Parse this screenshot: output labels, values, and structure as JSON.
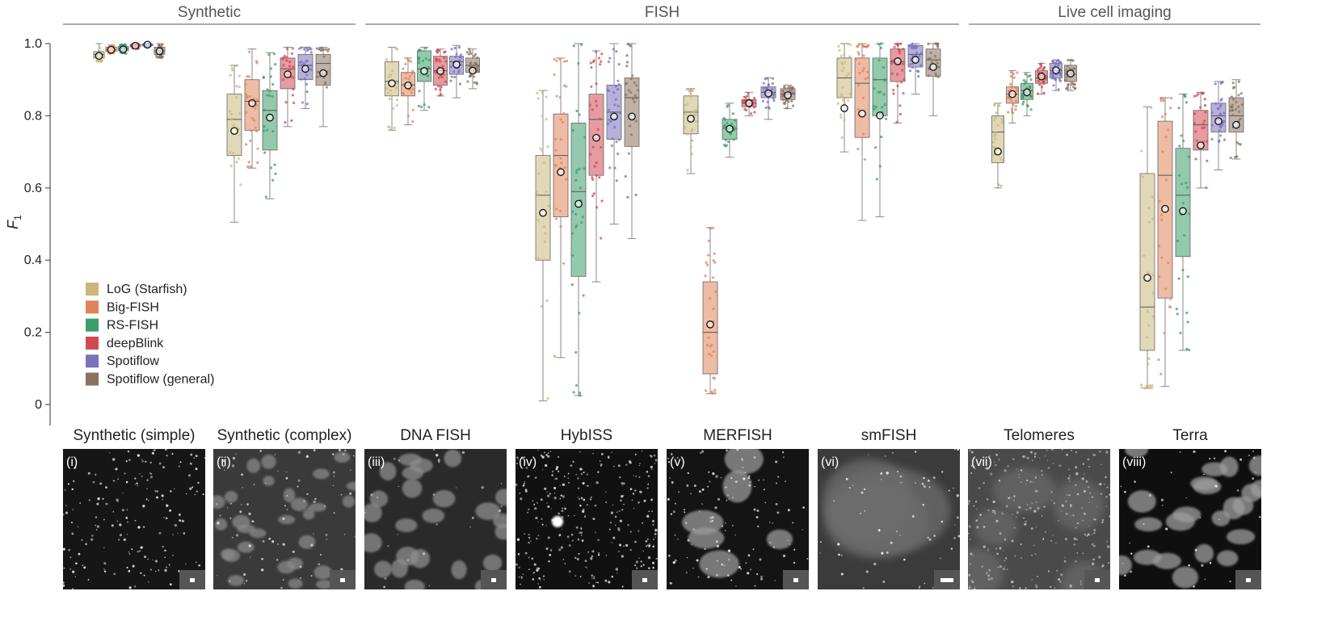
{
  "chart_data": {
    "type": "box",
    "ylabel": "F1",
    "ylim": [
      0,
      1.0
    ],
    "yticks": [
      0,
      0.2,
      0.4,
      0.6,
      0.8,
      1.0
    ],
    "ytick_labels": [
      "0",
      "0.2",
      "0.4",
      "0.6",
      "0.8",
      "1.0"
    ],
    "grid": false,
    "legend_position": "bottom-left",
    "groups": [
      {
        "label": "Synthetic",
        "datasets": [
          "Synthetic (simple)",
          "Synthetic (complex)"
        ]
      },
      {
        "label": "FISH",
        "datasets": [
          "DNA FISH",
          "HybISS",
          "MERFISH",
          "smFISH"
        ]
      },
      {
        "label": "Live cell imaging",
        "datasets": [
          "Telomeres",
          "Terra"
        ]
      }
    ],
    "methods": [
      {
        "name": "LoG (Starfish)",
        "color": "#c9b87c"
      },
      {
        "name": "Big-FISH",
        "color": "#e0845a"
      },
      {
        "name": "RS-FISH",
        "color": "#3c9e6a"
      },
      {
        "name": "deepBlink",
        "color": "#cf4a52"
      },
      {
        "name": "Spotiflow",
        "color": "#7a72bd"
      },
      {
        "name": "Spotiflow (general)",
        "color": "#8b7160"
      }
    ],
    "datasets": [
      {
        "name": "Synthetic (simple)",
        "panel": "(i)",
        "boxes": [
          {
            "q1": 0.96,
            "median": 0.97,
            "q3": 0.978,
            "wlo": 0.95,
            "whi": 1.0,
            "mean": 0.966
          },
          {
            "q1": 0.978,
            "median": 0.984,
            "q3": 0.99,
            "wlo": 0.972,
            "whi": 0.996,
            "mean": 0.983
          },
          {
            "q1": 0.98,
            "median": 0.986,
            "q3": 0.992,
            "wlo": 0.972,
            "whi": 0.998,
            "mean": 0.984
          },
          {
            "q1": 0.991,
            "median": 0.995,
            "q3": 0.998,
            "wlo": 0.986,
            "whi": 1.0,
            "mean": 0.994
          },
          {
            "q1": 0.994,
            "median": 0.997,
            "q3": 0.999,
            "wlo": 0.99,
            "whi": 1.0,
            "mean": 0.997
          },
          {
            "q1": 0.97,
            "median": 0.98,
            "q3": 0.99,
            "wlo": 0.96,
            "whi": 1.0,
            "mean": 0.979
          }
        ]
      },
      {
        "name": "Synthetic (complex)",
        "panel": "(ii)",
        "boxes": [
          {
            "q1": 0.69,
            "median": 0.79,
            "q3": 0.86,
            "wlo": 0.505,
            "whi": 0.94,
            "mean": 0.758
          },
          {
            "q1": 0.76,
            "median": 0.84,
            "q3": 0.9,
            "wlo": 0.655,
            "whi": 0.985,
            "mean": 0.835
          },
          {
            "q1": 0.705,
            "median": 0.815,
            "q3": 0.87,
            "wlo": 0.57,
            "whi": 0.975,
            "mean": 0.795
          },
          {
            "q1": 0.875,
            "median": 0.93,
            "q3": 0.96,
            "wlo": 0.77,
            "whi": 0.99,
            "mean": 0.915
          },
          {
            "q1": 0.9,
            "median": 0.94,
            "q3": 0.97,
            "wlo": 0.82,
            "whi": 0.99,
            "mean": 0.93
          },
          {
            "q1": 0.885,
            "median": 0.945,
            "q3": 0.97,
            "wlo": 0.77,
            "whi": 0.99,
            "mean": 0.918
          }
        ]
      },
      {
        "name": "DNA FISH",
        "panel": "(iii)",
        "boxes": [
          {
            "q1": 0.855,
            "median": 0.895,
            "q3": 0.95,
            "wlo": 0.76,
            "whi": 0.99,
            "mean": 0.89
          },
          {
            "q1": 0.855,
            "median": 0.885,
            "q3": 0.92,
            "wlo": 0.775,
            "whi": 0.96,
            "mean": 0.884
          },
          {
            "q1": 0.895,
            "median": 0.93,
            "q3": 0.98,
            "wlo": 0.815,
            "whi": 0.99,
            "mean": 0.924
          },
          {
            "q1": 0.885,
            "median": 0.925,
            "q3": 0.965,
            "wlo": 0.855,
            "whi": 0.985,
            "mean": 0.924
          },
          {
            "q1": 0.915,
            "median": 0.95,
            "q3": 0.965,
            "wlo": 0.85,
            "whi": 0.995,
            "mean": 0.942
          },
          {
            "q1": 0.92,
            "median": 0.94,
            "q3": 0.96,
            "wlo": 0.875,
            "whi": 0.985,
            "mean": 0.925
          }
        ]
      },
      {
        "name": "HybISS",
        "panel": "(iv)",
        "boxes": [
          {
            "q1": 0.4,
            "median": 0.58,
            "q3": 0.69,
            "wlo": 0.01,
            "whi": 0.87,
            "mean": 0.531
          },
          {
            "q1": 0.52,
            "median": 0.69,
            "q3": 0.805,
            "wlo": 0.13,
            "whi": 0.96,
            "mean": 0.644
          },
          {
            "q1": 0.355,
            "median": 0.59,
            "q3": 0.78,
            "wlo": 0.025,
            "whi": 1.0,
            "mean": 0.556
          },
          {
            "q1": 0.635,
            "median": 0.79,
            "q3": 0.86,
            "wlo": 0.34,
            "whi": 0.98,
            "mean": 0.739
          },
          {
            "q1": 0.735,
            "median": 0.81,
            "q3": 0.885,
            "wlo": 0.5,
            "whi": 1.0,
            "mean": 0.798
          },
          {
            "q1": 0.715,
            "median": 0.85,
            "q3": 0.905,
            "wlo": 0.46,
            "whi": 1.0,
            "mean": 0.798
          }
        ]
      },
      {
        "name": "MERFISH",
        "panel": "(v)",
        "boxes": [
          {
            "q1": 0.75,
            "median": 0.81,
            "q3": 0.855,
            "wlo": 0.64,
            "whi": 0.875,
            "mean": 0.792
          },
          {
            "q1": 0.085,
            "median": 0.2,
            "q3": 0.34,
            "wlo": 0.03,
            "whi": 0.49,
            "mean": 0.222
          },
          {
            "q1": 0.735,
            "median": 0.765,
            "q3": 0.79,
            "wlo": 0.685,
            "whi": 0.835,
            "mean": 0.764
          },
          {
            "q1": 0.825,
            "median": 0.835,
            "q3": 0.845,
            "wlo": 0.8,
            "whi": 0.865,
            "mean": 0.835
          },
          {
            "q1": 0.85,
            "median": 0.865,
            "q3": 0.88,
            "wlo": 0.79,
            "whi": 0.905,
            "mean": 0.862
          },
          {
            "q1": 0.845,
            "median": 0.86,
            "q3": 0.875,
            "wlo": 0.82,
            "whi": 0.885,
            "mean": 0.857
          }
        ]
      },
      {
        "name": "smFISH",
        "panel": "(vi)",
        "boxes": [
          {
            "q1": 0.85,
            "median": 0.905,
            "q3": 0.96,
            "wlo": 0.7,
            "whi": 1.0,
            "mean": 0.821
          },
          {
            "q1": 0.74,
            "median": 0.89,
            "q3": 0.96,
            "wlo": 0.51,
            "whi": 1.0,
            "mean": 0.806
          },
          {
            "q1": 0.8,
            "median": 0.9,
            "q3": 0.96,
            "wlo": 0.52,
            "whi": 1.0,
            "mean": 0.801
          },
          {
            "q1": 0.895,
            "median": 0.95,
            "q3": 0.985,
            "wlo": 0.78,
            "whi": 1.0,
            "mean": 0.951
          },
          {
            "q1": 0.935,
            "median": 0.97,
            "q3": 0.995,
            "wlo": 0.86,
            "whi": 1.0,
            "mean": 0.955
          },
          {
            "q1": 0.91,
            "median": 0.955,
            "q3": 0.985,
            "wlo": 0.8,
            "whi": 1.0,
            "mean": 0.935
          }
        ]
      },
      {
        "name": "Telomeres",
        "panel": "(vii)",
        "boxes": [
          {
            "q1": 0.67,
            "median": 0.755,
            "q3": 0.8,
            "wlo": 0.6,
            "whi": 0.835,
            "mean": 0.701
          },
          {
            "q1": 0.835,
            "median": 0.86,
            "q3": 0.88,
            "wlo": 0.78,
            "whi": 0.925,
            "mean": 0.86
          },
          {
            "q1": 0.845,
            "median": 0.87,
            "q3": 0.89,
            "wlo": 0.8,
            "whi": 0.92,
            "mean": 0.865
          },
          {
            "q1": 0.89,
            "median": 0.905,
            "q3": 0.925,
            "wlo": 0.86,
            "whi": 0.945,
            "mean": 0.909
          },
          {
            "q1": 0.905,
            "median": 0.925,
            "q3": 0.945,
            "wlo": 0.87,
            "whi": 0.955,
            "mean": 0.926
          },
          {
            "q1": 0.895,
            "median": 0.915,
            "q3": 0.94,
            "wlo": 0.87,
            "whi": 0.955,
            "mean": 0.917
          }
        ]
      },
      {
        "name": "Terra",
        "panel": "(viii)",
        "boxes": [
          {
            "q1": 0.15,
            "median": 0.27,
            "q3": 0.64,
            "wlo": 0.045,
            "whi": 0.825,
            "mean": 0.351
          },
          {
            "q1": 0.295,
            "median": 0.635,
            "q3": 0.785,
            "wlo": 0.05,
            "whi": 0.85,
            "mean": 0.542
          },
          {
            "q1": 0.41,
            "median": 0.58,
            "q3": 0.71,
            "wlo": 0.15,
            "whi": 0.86,
            "mean": 0.536
          },
          {
            "q1": 0.705,
            "median": 0.775,
            "q3": 0.815,
            "wlo": 0.6,
            "whi": 0.865,
            "mean": 0.718
          },
          {
            "q1": 0.755,
            "median": 0.8,
            "q3": 0.835,
            "wlo": 0.65,
            "whi": 0.895,
            "mean": 0.785
          },
          {
            "q1": 0.755,
            "median": 0.8,
            "q3": 0.85,
            "wlo": 0.68,
            "whi": 0.9,
            "mean": 0.775
          }
        ]
      }
    ]
  }
}
